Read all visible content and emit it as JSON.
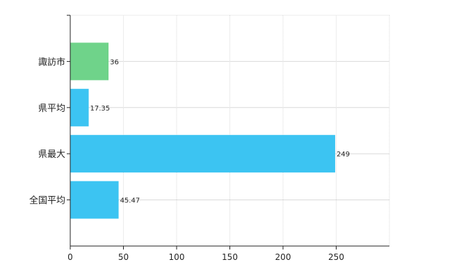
{
  "chart_data": {
    "type": "bar",
    "orientation": "horizontal",
    "categories": [
      "諏訪市",
      "県平均",
      "県最大",
      "全国平均"
    ],
    "values": [
      36,
      17.35,
      249,
      45.47
    ],
    "value_labels": [
      "36",
      "17.35",
      "249",
      "45.47"
    ],
    "colors": [
      "#6fd38a",
      "#3cc4f2",
      "#3cc4f2",
      "#3cc4f2"
    ],
    "xlim": [
      0,
      300
    ],
    "xticks": [
      0,
      50,
      100,
      150,
      200,
      250
    ],
    "xtick_labels": [
      "0",
      "50",
      "100",
      "150",
      "200",
      "250"
    ],
    "grid": true,
    "legend": "none",
    "title": "",
    "xlabel": "",
    "ylabel": ""
  }
}
